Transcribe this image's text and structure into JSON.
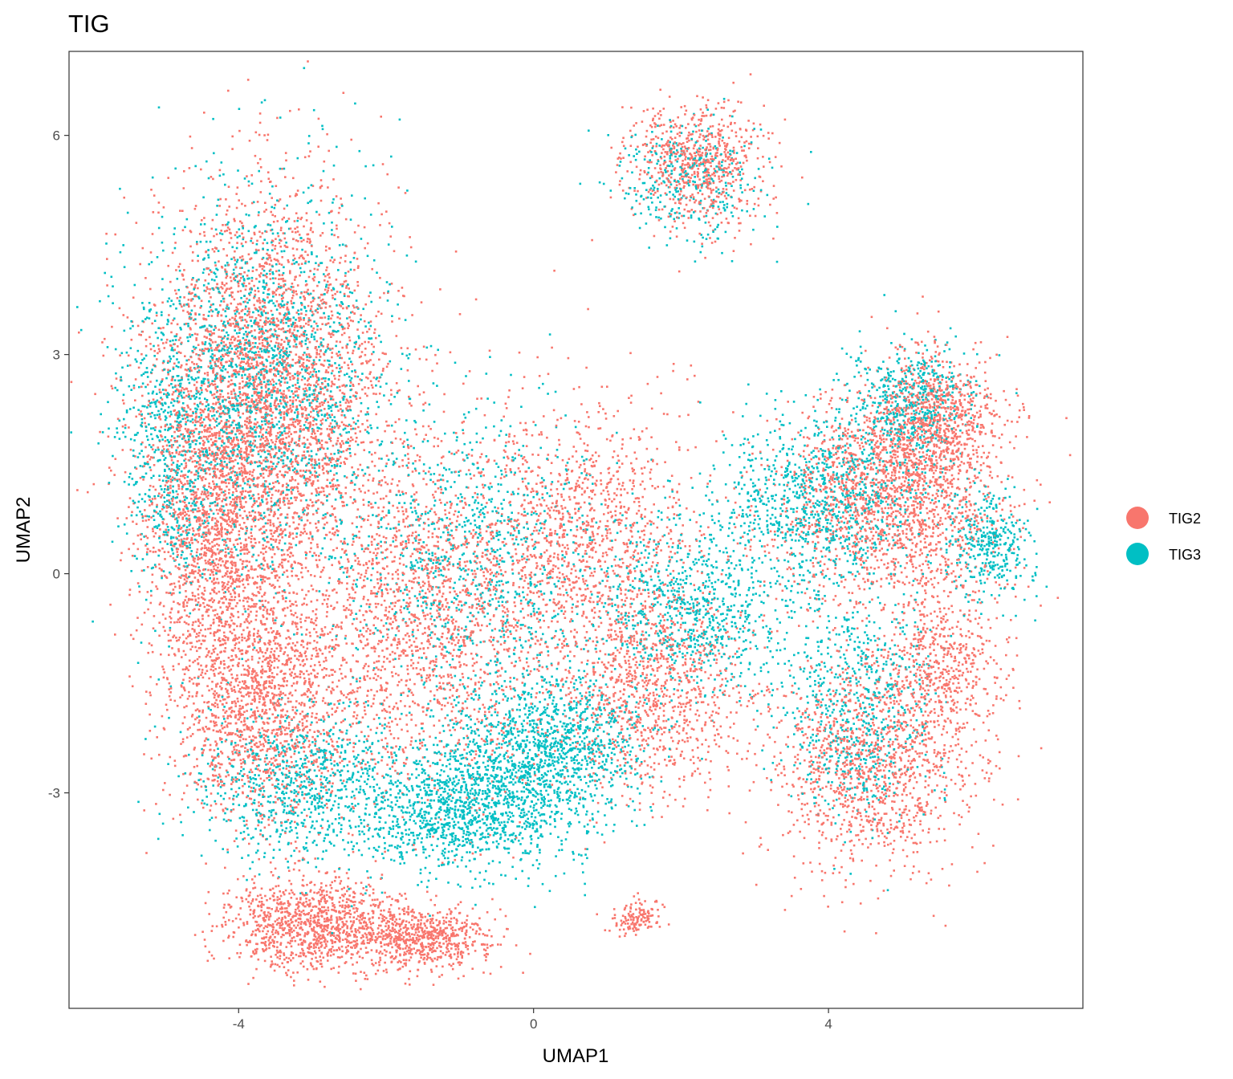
{
  "chart_data": {
    "type": "scatter",
    "title": "TIG",
    "xlabel": "UMAP1",
    "ylabel": "UMAP2",
    "xlim": [
      -6.3,
      7.45
    ],
    "ylim": [
      -5.95,
      7.15
    ],
    "xticks": [
      -4,
      0,
      4
    ],
    "xtick_labels": [
      "-4",
      "0",
      "4"
    ],
    "yticks": [
      -3,
      0,
      3,
      6
    ],
    "ytick_labels": [
      "-3",
      "0",
      "3",
      "6"
    ],
    "grid": false,
    "legend": "right",
    "series": [
      {
        "name": "TIG2",
        "color": "#F8766D",
        "clusters": [
          {
            "cx": -3.6,
            "cy": 2.5,
            "sx": 0.95,
            "sy": 1.6,
            "n": 3300
          },
          {
            "cx": -4.3,
            "cy": 0.5,
            "sx": 0.6,
            "sy": 1.3,
            "n": 1500
          },
          {
            "cx": -3.7,
            "cy": -1.8,
            "sx": 0.7,
            "sy": 1.0,
            "n": 1500
          },
          {
            "cx": -3.0,
            "cy": -4.8,
            "sx": 0.7,
            "sy": 0.35,
            "n": 1100
          },
          {
            "cx": -1.5,
            "cy": -5.0,
            "sx": 0.55,
            "sy": 0.25,
            "n": 650
          },
          {
            "cx": -1.5,
            "cy": -0.6,
            "sx": 1.1,
            "sy": 1.4,
            "n": 1900
          },
          {
            "cx": 0.8,
            "cy": 0.5,
            "sx": 0.9,
            "sy": 1.1,
            "n": 1100
          },
          {
            "cx": 1.6,
            "cy": -1.6,
            "sx": 0.75,
            "sy": 0.8,
            "n": 1000
          },
          {
            "cx": 4.8,
            "cy": 1.0,
            "sx": 0.9,
            "sy": 0.8,
            "n": 1700
          },
          {
            "cx": 5.4,
            "cy": 2.1,
            "sx": 0.5,
            "sy": 0.55,
            "n": 800
          },
          {
            "cx": 4.6,
            "cy": -2.6,
            "sx": 0.8,
            "sy": 0.9,
            "n": 1300
          },
          {
            "cx": 5.6,
            "cy": -1.2,
            "sx": 0.45,
            "sy": 0.6,
            "n": 500
          },
          {
            "cx": 2.2,
            "cy": 5.6,
            "sx": 0.55,
            "sy": 0.5,
            "n": 700
          },
          {
            "cx": 1.4,
            "cy": -4.7,
            "sx": 0.2,
            "sy": 0.15,
            "n": 130
          }
        ]
      },
      {
        "name": "TIG3",
        "color": "#00BFC4",
        "clusters": [
          {
            "cx": -3.7,
            "cy": 2.6,
            "sx": 1.0,
            "sy": 1.5,
            "n": 1900
          },
          {
            "cx": -4.9,
            "cy": 1.5,
            "sx": 0.35,
            "sy": 1.1,
            "n": 450
          },
          {
            "cx": -3.0,
            "cy": -2.9,
            "sx": 0.9,
            "sy": 0.6,
            "n": 900
          },
          {
            "cx": -1.3,
            "cy": -3.3,
            "sx": 0.6,
            "sy": 0.45,
            "n": 650
          },
          {
            "cx": -0.3,
            "cy": -2.8,
            "sx": 0.7,
            "sy": 0.7,
            "n": 1000
          },
          {
            "cx": 0.5,
            "cy": -2.3,
            "sx": 0.6,
            "sy": 0.6,
            "n": 700
          },
          {
            "cx": -0.8,
            "cy": 0.2,
            "sx": 1.0,
            "sy": 1.2,
            "n": 900
          },
          {
            "cx": 2.2,
            "cy": -0.5,
            "sx": 0.8,
            "sy": 0.7,
            "n": 800
          },
          {
            "cx": 3.9,
            "cy": 1.0,
            "sx": 0.9,
            "sy": 0.7,
            "n": 1000
          },
          {
            "cx": 5.1,
            "cy": 2.4,
            "sx": 0.5,
            "sy": 0.45,
            "n": 500
          },
          {
            "cx": 6.2,
            "cy": 0.4,
            "sx": 0.35,
            "sy": 0.45,
            "n": 350
          },
          {
            "cx": 4.4,
            "cy": -1.8,
            "sx": 0.6,
            "sy": 0.9,
            "n": 650
          },
          {
            "cx": 2.1,
            "cy": 5.4,
            "sx": 0.55,
            "sy": 0.5,
            "n": 350
          }
        ]
      }
    ]
  }
}
